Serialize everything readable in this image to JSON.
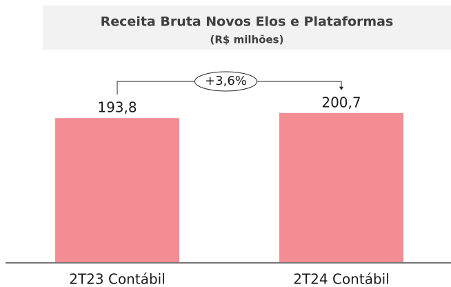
{
  "chart_data": {
    "type": "bar",
    "title": "Receita Bruta Novos Elos e Plataformas",
    "subtitle": "(R$ milhões)",
    "categories": [
      "2T23 Contábil",
      "2T24 Contábil"
    ],
    "values": [
      193.8,
      200.7
    ],
    "value_labels": [
      "193,8",
      "200,7"
    ],
    "color": "#f48c94",
    "ylim": [
      0,
      220
    ],
    "annotation": "+3,6%"
  }
}
